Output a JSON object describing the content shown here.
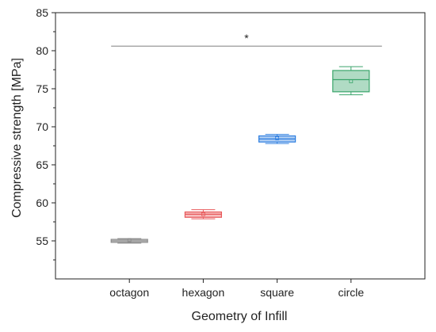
{
  "chart_data": {
    "type": "box",
    "xlabel": "Geometry of Infill",
    "ylabel": "Compressive strength [MPa]",
    "ylim": [
      50,
      85
    ],
    "yticks": [
      55,
      60,
      65,
      70,
      75,
      80,
      85
    ],
    "categories": [
      "octagon",
      "hexagon",
      "square",
      "circle"
    ],
    "boxes": [
      {
        "category": "octagon",
        "min": 54.7,
        "q1": 54.8,
        "median": 55.0,
        "mean": 55.1,
        "q3": 55.2,
        "max": 55.3,
        "color": "#8c8c8c"
      },
      {
        "category": "hexagon",
        "min": 57.9,
        "q1": 58.1,
        "median": 58.5,
        "mean": 58.5,
        "q3": 58.8,
        "max": 59.1,
        "color": "#e8595b"
      },
      {
        "category": "square",
        "min": 67.8,
        "q1": 68.0,
        "median": 68.4,
        "mean": 68.5,
        "q3": 68.8,
        "max": 69.0,
        "color": "#2f7fe0"
      },
      {
        "category": "circle",
        "min": 74.2,
        "q1": 74.6,
        "median": 76.2,
        "mean": 76.0,
        "q3": 77.4,
        "max": 77.9,
        "color": "#3aa56b"
      }
    ],
    "significance": {
      "from": "octagon",
      "to": "circle",
      "y": 80.6,
      "label": "*"
    },
    "grid": false
  }
}
